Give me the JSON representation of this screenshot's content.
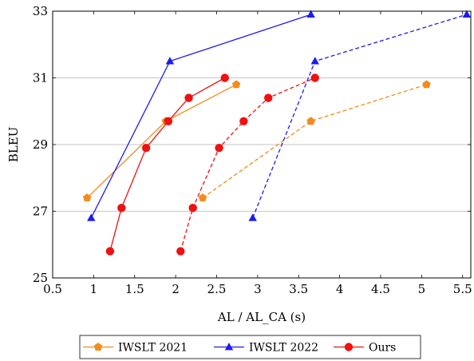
{
  "chart_data": {
    "type": "line",
    "xlabel": "AL / AL_CA (s)",
    "ylabel": "BLEU",
    "xlim": [
      0.5,
      5.6
    ],
    "ylim": [
      25,
      33
    ],
    "xticks": [
      0.5,
      1,
      1.5,
      2,
      2.5,
      3,
      3.5,
      4,
      4.5,
      5,
      5.5
    ],
    "xtick_labels": [
      "0.5",
      "1",
      "1.5",
      "2",
      "2.5",
      "3",
      "3.5",
      "4",
      "4.5",
      "5",
      "5.5"
    ],
    "yticks": [
      25,
      27,
      29,
      31,
      33
    ],
    "ytick_labels": [
      "25",
      "27",
      "29",
      "31",
      "33"
    ],
    "grid": "horizontal",
    "legend_position": "bottom",
    "series": [
      {
        "name": "IWSLT 2021",
        "color": "#f28c1e",
        "marker": "pentagon",
        "style": "solid",
        "points": [
          [
            0.92,
            27.4
          ],
          [
            1.88,
            29.7
          ],
          [
            2.74,
            30.8
          ]
        ]
      },
      {
        "name": "IWSLT 2022",
        "color": "#1c1cf0",
        "marker": "triangle",
        "style": "solid",
        "points": [
          [
            0.97,
            26.8
          ],
          [
            1.93,
            31.5
          ],
          [
            3.65,
            32.9
          ]
        ]
      },
      {
        "name": "Ours",
        "color": "#ee1111",
        "marker": "circle",
        "style": "solid",
        "points": [
          [
            1.2,
            25.8
          ],
          [
            1.34,
            27.1
          ],
          [
            1.64,
            28.9
          ],
          [
            1.91,
            29.7
          ],
          [
            2.16,
            30.4
          ],
          [
            2.6,
            31.0
          ]
        ]
      },
      {
        "name": "IWSLT 2021",
        "color": "#f28c1e",
        "marker": "pentagon",
        "style": "dashed",
        "legend": false,
        "points": [
          [
            2.33,
            27.4
          ],
          [
            3.65,
            29.7
          ],
          [
            5.06,
            30.8
          ]
        ]
      },
      {
        "name": "IWSLT 2022",
        "color": "#1c1cf0",
        "marker": "triangle",
        "style": "dashed",
        "legend": false,
        "points": [
          [
            2.94,
            26.8
          ],
          [
            3.7,
            31.5
          ],
          [
            5.55,
            32.9
          ]
        ]
      },
      {
        "name": "Ours",
        "color": "#ee1111",
        "marker": "circle",
        "style": "dashed",
        "legend": false,
        "points": [
          [
            2.06,
            25.8
          ],
          [
            2.21,
            27.1
          ],
          [
            2.53,
            28.9
          ],
          [
            2.83,
            29.7
          ],
          [
            3.13,
            30.4
          ],
          [
            3.7,
            31.0
          ]
        ]
      }
    ]
  }
}
